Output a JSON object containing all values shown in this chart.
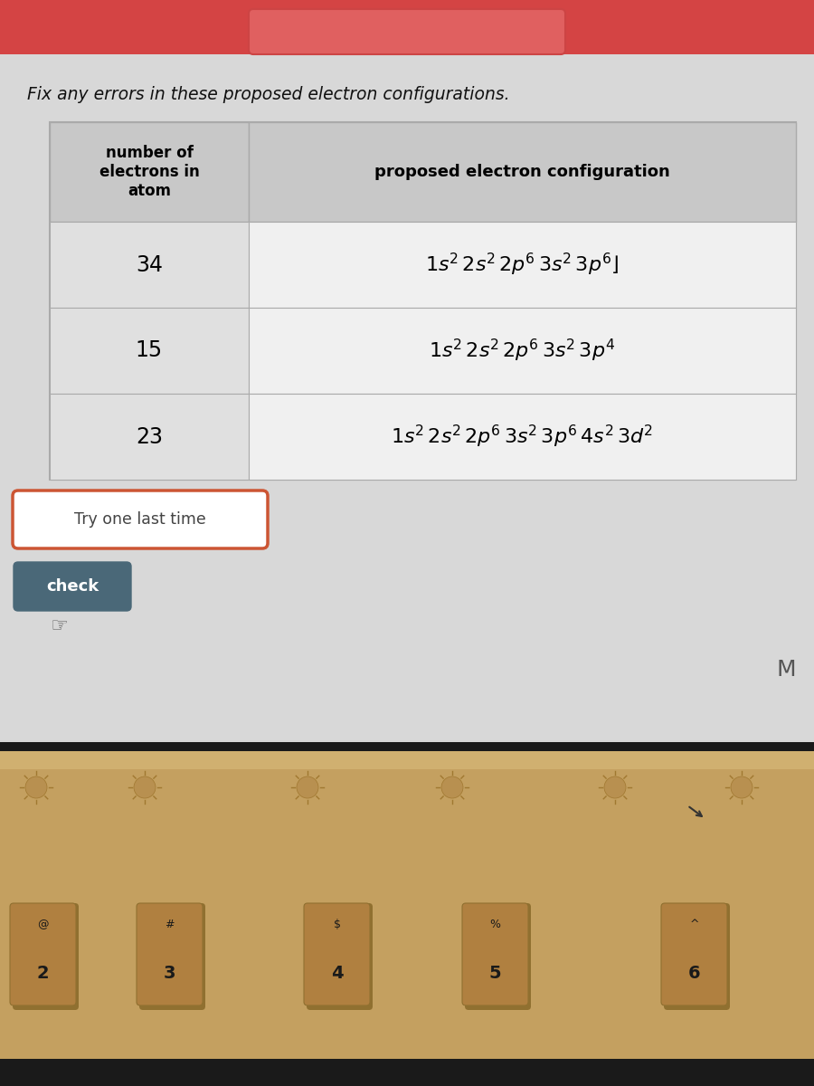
{
  "title": "Fix any errors in these proposed electron configurations.",
  "title_fontsize": 13.5,
  "col1_header": "number of\nelectrons in\natom",
  "col2_header": "proposed electron configuration",
  "rows": [
    {
      "electrons": "34",
      "config": "1s^{2}\\,2s^{2}\\,2p^{6}\\,3s^{2}\\,3p^{6}\\rfloor"
    },
    {
      "electrons": "15",
      "config": "1s^{2}\\,2s^{2}\\,2p^{6}\\,3s^{2}\\,3p^{4}"
    },
    {
      "electrons": "23",
      "config": "1s^{2}\\,2s^{2}\\,2p^{6}\\,3s^{2}\\,3p^{6}\\,4s^{2}\\,3d^{2}"
    }
  ],
  "try_button_text": "Try one last time",
  "check_button_text": "check",
  "page_bg": "#d8d8d8",
  "top_accent_color": "#e05050",
  "table_border_color": "#aaaaaa",
  "header_bg": "#c8c8c8",
  "row_bg_odd": "#e0e0e0",
  "row_bg_even": "#ebebeb",
  "col2_bg": "#f0f0f0",
  "button_border_color": "#cc5533",
  "check_bg": "#4a6878",
  "check_text_color": "#ffffff",
  "keyboard_bg": "#c4a060",
  "keyboard_top_bg": "#b89050",
  "key_bg": "#b08040",
  "key_border": "#907030",
  "key_text": "#1a1a1a"
}
